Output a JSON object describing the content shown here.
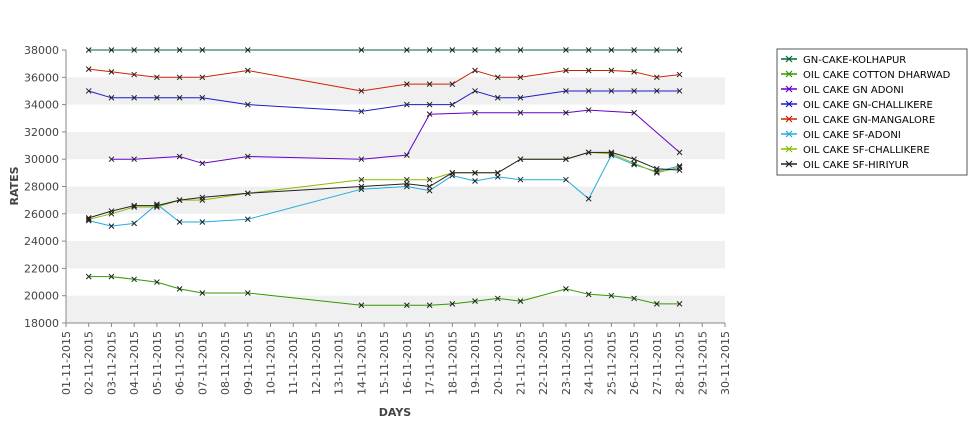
{
  "chart_data": {
    "type": "line",
    "xlabel": "DAYS",
    "ylabel": "RATES",
    "ylim": [
      18000,
      38000
    ],
    "y_ticks": [
      18000,
      20000,
      22000,
      24000,
      26000,
      28000,
      30000,
      32000,
      34000,
      36000,
      38000
    ],
    "y_tick_labels": [
      "18000",
      "20000",
      "22000",
      "24000",
      "26000",
      "28000",
      "30000",
      "32000",
      "34000",
      "36000",
      "38000"
    ],
    "x_ticks": [
      "01-11-2015",
      "02-11-2015",
      "03-11-2015",
      "04-11-2015",
      "05-11-2015",
      "06-11-2015",
      "07-11-2015",
      "08-11-2015",
      "09-11-2015",
      "10-11-2015",
      "11-11-2015",
      "12-11-2015",
      "13-11-2015",
      "14-11-2015",
      "15-11-2015",
      "16-11-2015",
      "17-11-2015",
      "18-11-2015",
      "19-11-2015",
      "20-11-2015",
      "21-11-2015",
      "22-11-2015",
      "23-11-2015",
      "24-11-2015",
      "25-11-2015",
      "26-11-2015",
      "27-11-2015",
      "28-11-2015",
      "29-11-2015",
      "30-11-2015"
    ],
    "grid": "horizontal alternating bands",
    "legend_position": "right",
    "series": [
      {
        "name": "GN-CAKE-KOLHAPUR",
        "color": "#006633",
        "points": [
          [
            "02-11-2015",
            38000
          ],
          [
            "03-11-2015",
            38000
          ],
          [
            "04-11-2015",
            38000
          ],
          [
            "05-11-2015",
            38000
          ],
          [
            "06-11-2015",
            38000
          ],
          [
            "07-11-2015",
            38000
          ],
          [
            "09-11-2015",
            38000
          ],
          [
            "14-11-2015",
            38000
          ],
          [
            "16-11-2015",
            38000
          ],
          [
            "17-11-2015",
            38000
          ],
          [
            "18-11-2015",
            38000
          ],
          [
            "19-11-2015",
            38000
          ],
          [
            "20-11-2015",
            38000
          ],
          [
            "21-11-2015",
            38000
          ],
          [
            "23-11-2015",
            38000
          ],
          [
            "24-11-2015",
            38000
          ],
          [
            "25-11-2015",
            38000
          ],
          [
            "26-11-2015",
            38000
          ],
          [
            "27-11-2015",
            38000
          ],
          [
            "28-11-2015",
            38000
          ]
        ]
      },
      {
        "name": "OIL CAKE COTTON DHARWAD",
        "color": "#339900",
        "points": [
          [
            "02-11-2015",
            21400
          ],
          [
            "03-11-2015",
            21400
          ],
          [
            "04-11-2015",
            21200
          ],
          [
            "05-11-2015",
            21000
          ],
          [
            "06-11-2015",
            20500
          ],
          [
            "07-11-2015",
            20200
          ],
          [
            "09-11-2015",
            20200
          ],
          [
            "14-11-2015",
            19300
          ],
          [
            "16-11-2015",
            19300
          ],
          [
            "17-11-2015",
            19300
          ],
          [
            "18-11-2015",
            19400
          ],
          [
            "19-11-2015",
            19600
          ],
          [
            "20-11-2015",
            19800
          ],
          [
            "21-11-2015",
            19600
          ],
          [
            "23-11-2015",
            20500
          ],
          [
            "24-11-2015",
            20100
          ],
          [
            "25-11-2015",
            20000
          ],
          [
            "26-11-2015",
            19800
          ],
          [
            "27-11-2015",
            19400
          ],
          [
            "28-11-2015",
            19400
          ]
        ]
      },
      {
        "name": "OIL CAKE GN ADONI",
        "color": "#6600cc",
        "points": [
          [
            "03-11-2015",
            30000
          ],
          [
            "04-11-2015",
            30000
          ],
          [
            "06-11-2015",
            30200
          ],
          [
            "07-11-2015",
            29700
          ],
          [
            "09-11-2015",
            30200
          ],
          [
            "14-11-2015",
            30000
          ],
          [
            "16-11-2015",
            30300
          ],
          [
            "17-11-2015",
            33300
          ],
          [
            "19-11-2015",
            33400
          ],
          [
            "21-11-2015",
            33400
          ],
          [
            "23-11-2015",
            33400
          ],
          [
            "24-11-2015",
            33600
          ],
          [
            "26-11-2015",
            33400
          ],
          [
            "28-11-2015",
            30500
          ]
        ]
      },
      {
        "name": "OIL CAKE GN-CHALLIKERE",
        "color": "#1a1acc",
        "points": [
          [
            "02-11-2015",
            35000
          ],
          [
            "03-11-2015",
            34500
          ],
          [
            "04-11-2015",
            34500
          ],
          [
            "05-11-2015",
            34500
          ],
          [
            "06-11-2015",
            34500
          ],
          [
            "07-11-2015",
            34500
          ],
          [
            "09-11-2015",
            34000
          ],
          [
            "14-11-2015",
            33500
          ],
          [
            "16-11-2015",
            34000
          ],
          [
            "17-11-2015",
            34000
          ],
          [
            "18-11-2015",
            34000
          ],
          [
            "19-11-2015",
            35000
          ],
          [
            "20-11-2015",
            34500
          ],
          [
            "21-11-2015",
            34500
          ],
          [
            "23-11-2015",
            35000
          ],
          [
            "24-11-2015",
            35000
          ],
          [
            "25-11-2015",
            35000
          ],
          [
            "26-11-2015",
            35000
          ],
          [
            "27-11-2015",
            35000
          ],
          [
            "28-11-2015",
            35000
          ]
        ]
      },
      {
        "name": "OIL CAKE GN-MANGALORE",
        "color": "#cc2200",
        "points": [
          [
            "02-11-2015",
            36600
          ],
          [
            "03-11-2015",
            36400
          ],
          [
            "04-11-2015",
            36200
          ],
          [
            "05-11-2015",
            36000
          ],
          [
            "06-11-2015",
            36000
          ],
          [
            "07-11-2015",
            36000
          ],
          [
            "09-11-2015",
            36500
          ],
          [
            "14-11-2015",
            35000
          ],
          [
            "16-11-2015",
            35500
          ],
          [
            "17-11-2015",
            35500
          ],
          [
            "18-11-2015",
            35500
          ],
          [
            "19-11-2015",
            36500
          ],
          [
            "20-11-2015",
            36000
          ],
          [
            "21-11-2015",
            36000
          ],
          [
            "23-11-2015",
            36500
          ],
          [
            "24-11-2015",
            36500
          ],
          [
            "25-11-2015",
            36500
          ],
          [
            "26-11-2015",
            36400
          ],
          [
            "27-11-2015",
            36000
          ],
          [
            "28-11-2015",
            36200
          ]
        ]
      },
      {
        "name": "OIL CAKE SF-ADONI",
        "color": "#22aadd",
        "points": [
          [
            "02-11-2015",
            25500
          ],
          [
            "03-11-2015",
            25100
          ],
          [
            "04-11-2015",
            25300
          ],
          [
            "05-11-2015",
            26700
          ],
          [
            "06-11-2015",
            25400
          ],
          [
            "07-11-2015",
            25400
          ],
          [
            "09-11-2015",
            25600
          ],
          [
            "14-11-2015",
            27800
          ],
          [
            "16-11-2015",
            28000
          ],
          [
            "17-11-2015",
            27700
          ],
          [
            "18-11-2015",
            28800
          ],
          [
            "19-11-2015",
            28400
          ],
          [
            "20-11-2015",
            28700
          ],
          [
            "21-11-2015",
            28500
          ],
          [
            "23-11-2015",
            28500
          ],
          [
            "24-11-2015",
            27100
          ],
          [
            "25-11-2015",
            30300
          ],
          [
            "26-11-2015",
            29600
          ],
          [
            "27-11-2015",
            29100
          ],
          [
            "28-11-2015",
            29500
          ]
        ]
      },
      {
        "name": "OIL CAKE SF-CHALLIKERE",
        "color": "#88bb00",
        "points": [
          [
            "02-11-2015",
            25600
          ],
          [
            "03-11-2015",
            26000
          ],
          [
            "04-11-2015",
            26500
          ],
          [
            "05-11-2015",
            26500
          ],
          [
            "06-11-2015",
            27000
          ],
          [
            "07-11-2015",
            27000
          ],
          [
            "09-11-2015",
            27500
          ],
          [
            "14-11-2015",
            28500
          ],
          [
            "16-11-2015",
            28500
          ],
          [
            "17-11-2015",
            28500
          ],
          [
            "18-11-2015",
            29000
          ],
          [
            "19-11-2015",
            29000
          ],
          [
            "20-11-2015",
            29000
          ],
          [
            "21-11-2015",
            30000
          ],
          [
            "23-11-2015",
            30000
          ],
          [
            "24-11-2015",
            30500
          ],
          [
            "25-11-2015",
            30400
          ],
          [
            "26-11-2015",
            29700
          ],
          [
            "27-11-2015",
            29000
          ],
          [
            "28-11-2015",
            29400
          ]
        ]
      },
      {
        "name": "OIL CAKE SF-HIRIYUR",
        "color": "#222222",
        "points": [
          [
            "02-11-2015",
            25700
          ],
          [
            "03-11-2015",
            26200
          ],
          [
            "04-11-2015",
            26600
          ],
          [
            "05-11-2015",
            26600
          ],
          [
            "06-11-2015",
            27000
          ],
          [
            "07-11-2015",
            27200
          ],
          [
            "09-11-2015",
            27500
          ],
          [
            "14-11-2015",
            28000
          ],
          [
            "16-11-2015",
            28200
          ],
          [
            "17-11-2015",
            28000
          ],
          [
            "18-11-2015",
            29000
          ],
          [
            "19-11-2015",
            29000
          ],
          [
            "20-11-2015",
            29000
          ],
          [
            "21-11-2015",
            30000
          ],
          [
            "23-11-2015",
            30000
          ],
          [
            "24-11-2015",
            30500
          ],
          [
            "25-11-2015",
            30500
          ],
          [
            "26-11-2015",
            30000
          ],
          [
            "27-11-2015",
            29300
          ],
          [
            "28-11-2015",
            29200
          ]
        ]
      }
    ]
  }
}
